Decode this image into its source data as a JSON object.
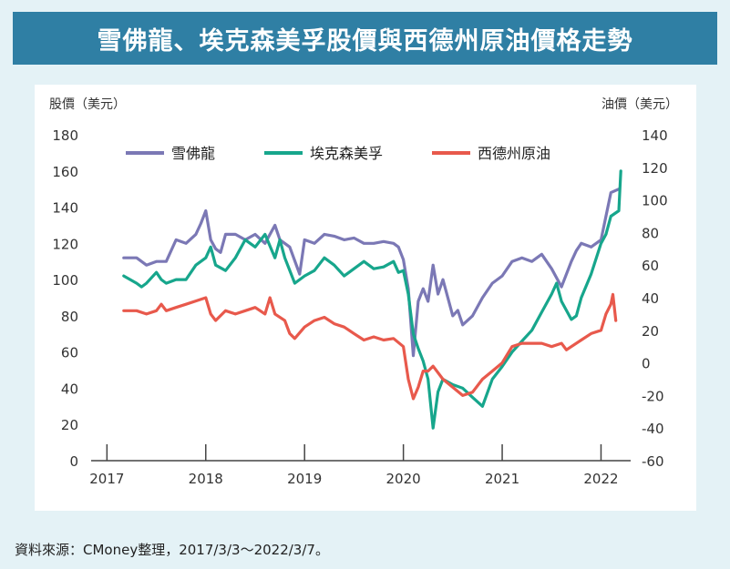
{
  "title": "雪佛龍、埃克森美孚股價與西德州原油價格走勢",
  "source": "資料來源：CMoney整理，2017/3/3～2022/3/7。",
  "chart_data": {
    "type": "line",
    "left_axis_label": "股價（美元）",
    "right_axis_label": "油價（美元）",
    "left_ylim": [
      0,
      180
    ],
    "right_ylim": [
      -60,
      140
    ],
    "left_ticks": [
      "0",
      "20",
      "40",
      "60",
      "80",
      "100",
      "120",
      "140",
      "160",
      "180"
    ],
    "right_ticks": [
      "-60",
      "-40",
      "-20",
      "0",
      "20",
      "40",
      "60",
      "80",
      "100",
      "120",
      "140"
    ],
    "x_ticks": [
      "2017",
      "2018",
      "2019",
      "2020",
      "2021",
      "2022"
    ],
    "x_range": [
      2016.84,
      2022.3
    ],
    "grid": false,
    "legend_position": "top",
    "series": [
      {
        "name": "雪佛龍",
        "axis": "left",
        "color": "#7b78b5",
        "x": [
          2017.17,
          2017.3,
          2017.4,
          2017.5,
          2017.6,
          2017.7,
          2017.8,
          2017.9,
          2017.95,
          2018.0,
          2018.05,
          2018.1,
          2018.15,
          2018.2,
          2018.3,
          2018.4,
          2018.5,
          2018.6,
          2018.7,
          2018.75,
          2018.85,
          2018.95,
          2019.0,
          2019.1,
          2019.2,
          2019.3,
          2019.4,
          2019.5,
          2019.6,
          2019.7,
          2019.8,
          2019.9,
          2019.95,
          2020.0,
          2020.05,
          2020.1,
          2020.15,
          2020.2,
          2020.25,
          2020.3,
          2020.35,
          2020.4,
          2020.5,
          2020.55,
          2020.6,
          2020.7,
          2020.8,
          2020.9,
          2021.0,
          2021.1,
          2021.2,
          2021.3,
          2021.4,
          2021.5,
          2021.6,
          2021.7,
          2021.75,
          2021.8,
          2021.9,
          2022.0,
          2022.05,
          2022.1,
          2022.18
        ],
        "values": [
          112,
          112,
          108,
          110,
          110,
          122,
          120,
          125,
          131,
          138,
          122,
          117,
          115,
          125,
          125,
          122,
          125,
          120,
          130,
          122,
          118,
          103,
          122,
          120,
          125,
          124,
          122,
          123,
          120,
          120,
          121,
          120,
          118,
          111,
          95,
          58,
          88,
          95,
          88,
          108,
          92,
          100,
          80,
          83,
          75,
          80,
          90,
          98,
          102,
          110,
          112,
          110,
          114,
          106,
          96,
          110,
          116,
          120,
          118,
          122,
          135,
          148,
          150
        ]
      },
      {
        "name": "埃克森美孚",
        "axis": "left",
        "color": "#17a68c",
        "x": [
          2017.17,
          2017.3,
          2017.35,
          2017.4,
          2017.5,
          2017.55,
          2017.6,
          2017.7,
          2017.8,
          2017.9,
          2018.0,
          2018.05,
          2018.1,
          2018.2,
          2018.3,
          2018.4,
          2018.5,
          2018.6,
          2018.7,
          2018.75,
          2018.8,
          2018.9,
          2019.0,
          2019.1,
          2019.2,
          2019.3,
          2019.4,
          2019.5,
          2019.6,
          2019.7,
          2019.8,
          2019.9,
          2019.95,
          2020.0,
          2020.05,
          2020.1,
          2020.15,
          2020.2,
          2020.25,
          2020.3,
          2020.35,
          2020.4,
          2020.5,
          2020.6,
          2020.7,
          2020.8,
          2020.9,
          2021.0,
          2021.1,
          2021.2,
          2021.3,
          2021.4,
          2021.5,
          2021.55,
          2021.6,
          2021.7,
          2021.75,
          2021.8,
          2021.9,
          2022.0,
          2022.05,
          2022.1,
          2022.18,
          2022.2
        ],
        "values": [
          102,
          98,
          96,
          98,
          104,
          100,
          98,
          100,
          100,
          108,
          112,
          118,
          108,
          105,
          112,
          122,
          118,
          125,
          112,
          122,
          112,
          98,
          102,
          105,
          112,
          108,
          102,
          106,
          110,
          106,
          107,
          110,
          104,
          105,
          92,
          70,
          62,
          55,
          45,
          18,
          38,
          45,
          42,
          40,
          35,
          30,
          45,
          52,
          60,
          66,
          72,
          82,
          92,
          98,
          88,
          78,
          80,
          90,
          103,
          120,
          125,
          135,
          138,
          160
        ]
      },
      {
        "name": "西德州原油",
        "axis": "right",
        "color": "#e8594c",
        "x": [
          2017.17,
          2017.3,
          2017.4,
          2017.5,
          2017.55,
          2017.6,
          2017.7,
          2017.8,
          2017.9,
          2018.0,
          2018.05,
          2018.1,
          2018.2,
          2018.3,
          2018.4,
          2018.5,
          2018.6,
          2018.65,
          2018.7,
          2018.8,
          2018.85,
          2018.9,
          2019.0,
          2019.1,
          2019.2,
          2019.3,
          2019.4,
          2019.5,
          2019.6,
          2019.7,
          2019.8,
          2019.9,
          2020.0,
          2020.05,
          2020.1,
          2020.15,
          2020.2,
          2020.25,
          2020.3,
          2020.4,
          2020.5,
          2020.6,
          2020.7,
          2020.8,
          2020.9,
          2021.0,
          2021.1,
          2021.2,
          2021.3,
          2021.4,
          2021.5,
          2021.6,
          2021.65,
          2021.7,
          2021.8,
          2021.9,
          2022.0,
          2022.05,
          2022.1,
          2022.12,
          2022.15
        ],
        "values": [
          32,
          32,
          30,
          32,
          36,
          32,
          34,
          36,
          38,
          40,
          30,
          26,
          32,
          30,
          32,
          34,
          30,
          40,
          30,
          26,
          18,
          15,
          22,
          26,
          28,
          24,
          22,
          18,
          14,
          16,
          14,
          15,
          10,
          -10,
          -22,
          -15,
          -5,
          -5,
          -2,
          -10,
          -15,
          -20,
          -18,
          -10,
          -5,
          0,
          10,
          12,
          12,
          12,
          10,
          12,
          8,
          10,
          14,
          18,
          20,
          30,
          36,
          42,
          26
        ]
      }
    ]
  }
}
